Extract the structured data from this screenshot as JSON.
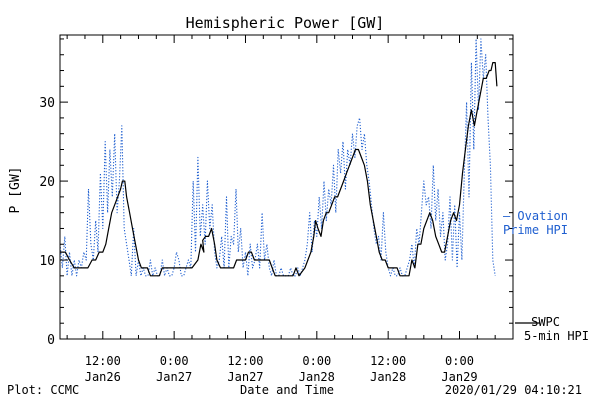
{
  "chart_data": {
    "type": "line",
    "title": "Hemispheric Power [GW]",
    "ylabel": "P [GW]",
    "xlabel": "Date and Time",
    "ylim": [
      0,
      38.5
    ],
    "yticks": [
      0,
      10,
      20,
      30
    ],
    "x_unit": "hours since 2020/01/25 00:00 UT",
    "xlim": [
      4.8,
      81
    ],
    "xticks": [
      {
        "x": 12,
        "line1": "12:00",
        "line2": "Jan26"
      },
      {
        "x": 24,
        "line1": "0:00",
        "line2": "Jan27"
      },
      {
        "x": 36,
        "line1": "12:00",
        "line2": "Jan27"
      },
      {
        "x": 48,
        "line1": "0:00",
        "line2": "Jan28"
      },
      {
        "x": 60,
        "line1": "12:00",
        "line2": "Jan28"
      },
      {
        "x": 72,
        "line1": "0:00",
        "line2": "Jan29"
      }
    ],
    "grid": false,
    "series": [
      {
        "name": "SWPC 5-min HPI",
        "color": "#000000",
        "style": "solid",
        "points": [
          [
            4.8,
            11
          ],
          [
            5.7,
            11
          ],
          [
            6.4,
            10
          ],
          [
            7.2,
            9
          ],
          [
            8,
            9
          ],
          [
            8.8,
            9
          ],
          [
            9.5,
            9
          ],
          [
            10.2,
            10
          ],
          [
            10.8,
            10
          ],
          [
            11.4,
            11
          ],
          [
            12,
            11
          ],
          [
            12.5,
            12
          ],
          [
            13,
            14
          ],
          [
            13.5,
            16
          ],
          [
            14,
            17
          ],
          [
            14.5,
            18
          ],
          [
            15,
            19
          ],
          [
            15.3,
            20
          ],
          [
            15.7,
            20
          ],
          [
            16,
            18
          ],
          [
            16.5,
            16
          ],
          [
            17,
            14
          ],
          [
            17.5,
            12
          ],
          [
            18,
            10
          ],
          [
            18.5,
            9
          ],
          [
            19,
            9
          ],
          [
            19.5,
            9
          ],
          [
            20,
            8
          ],
          [
            20.5,
            8
          ],
          [
            21,
            8
          ],
          [
            21.5,
            8
          ],
          [
            22,
            9
          ],
          [
            22.5,
            9
          ],
          [
            23,
            9
          ],
          [
            24,
            9
          ],
          [
            25,
            9
          ],
          [
            26,
            9
          ],
          [
            27,
            9
          ],
          [
            28,
            10
          ],
          [
            28.5,
            12
          ],
          [
            29,
            11
          ],
          [
            28.8,
            12.5
          ],
          [
            29.3,
            13
          ],
          [
            29.8,
            13
          ],
          [
            30.3,
            14
          ],
          [
            30.8,
            12
          ],
          [
            31.2,
            10
          ],
          [
            31.8,
            9
          ],
          [
            32.5,
            9
          ],
          [
            33.2,
            9
          ],
          [
            34,
            9
          ],
          [
            34.5,
            10
          ],
          [
            35,
            10
          ],
          [
            35.5,
            10
          ],
          [
            36,
            10
          ],
          [
            36.5,
            11
          ],
          [
            37,
            11
          ],
          [
            37.5,
            10
          ],
          [
            38,
            10
          ],
          [
            39,
            10
          ],
          [
            40,
            10
          ],
          [
            40.5,
            9
          ],
          [
            41,
            8
          ],
          [
            42,
            8
          ],
          [
            43,
            8
          ],
          [
            44,
            8
          ],
          [
            44.5,
            9
          ],
          [
            45,
            8
          ],
          [
            46,
            9
          ],
          [
            46.5,
            10
          ],
          [
            47,
            11
          ],
          [
            47.5,
            13
          ],
          [
            47.8,
            15
          ],
          [
            48.2,
            14
          ],
          [
            48.7,
            13
          ],
          [
            49.1,
            15
          ],
          [
            49.6,
            16
          ],
          [
            50,
            16
          ],
          [
            50.5,
            17
          ],
          [
            51,
            18
          ],
          [
            51.5,
            18
          ],
          [
            52,
            19
          ],
          [
            52.5,
            20
          ],
          [
            53,
            21
          ],
          [
            53.5,
            22
          ],
          [
            54,
            23
          ],
          [
            54.5,
            24
          ],
          [
            55,
            24
          ],
          [
            55.5,
            23
          ],
          [
            56,
            22
          ],
          [
            56.5,
            20
          ],
          [
            57,
            17
          ],
          [
            57.5,
            15
          ],
          [
            58,
            13
          ],
          [
            58.5,
            11
          ],
          [
            59,
            10
          ],
          [
            59.5,
            10
          ],
          [
            60,
            9
          ],
          [
            60.5,
            9
          ],
          [
            61,
            9
          ],
          [
            61.5,
            9
          ],
          [
            62,
            8
          ],
          [
            62.5,
            8
          ],
          [
            63,
            8
          ],
          [
            63.5,
            8
          ],
          [
            64,
            10
          ],
          [
            64.5,
            9
          ],
          [
            65,
            12
          ],
          [
            65.5,
            12
          ],
          [
            66,
            14
          ],
          [
            66.5,
            15
          ],
          [
            67,
            16
          ],
          [
            67.5,
            15
          ],
          [
            68,
            13
          ],
          [
            68.5,
            12
          ],
          [
            69,
            11
          ],
          [
            69.5,
            11
          ],
          [
            70,
            13
          ],
          [
            70.5,
            15
          ],
          [
            71,
            16
          ],
          [
            71.5,
            15
          ],
          [
            72,
            17
          ],
          [
            72.5,
            21
          ],
          [
            73,
            24
          ],
          [
            73.5,
            27
          ],
          [
            74,
            29
          ],
          [
            74.5,
            27
          ],
          [
            75,
            29
          ],
          [
            75.5,
            31
          ],
          [
            76,
            33
          ],
          [
            76.5,
            33
          ],
          [
            77,
            34
          ],
          [
            77.3,
            34
          ],
          [
            77.6,
            35
          ],
          [
            78,
            35
          ],
          [
            78.3,
            32
          ]
        ]
      },
      {
        "name": "Ovation Prime HPI",
        "color": "#1f5fd0",
        "style": "dotted",
        "points": [
          [
            4.8,
            12
          ],
          [
            5.2,
            9
          ],
          [
            5.6,
            13
          ],
          [
            6,
            8
          ],
          [
            6.4,
            11
          ],
          [
            6.8,
            8
          ],
          [
            7.2,
            10
          ],
          [
            7.6,
            8
          ],
          [
            8,
            10
          ],
          [
            8.4,
            9
          ],
          [
            8.8,
            11
          ],
          [
            9.2,
            10
          ],
          [
            9.6,
            19
          ],
          [
            10,
            12
          ],
          [
            10.4,
            10
          ],
          [
            10.8,
            15
          ],
          [
            11.2,
            11
          ],
          [
            11.6,
            21
          ],
          [
            12,
            14
          ],
          [
            12.4,
            25
          ],
          [
            12.8,
            16
          ],
          [
            13.2,
            24
          ],
          [
            13.6,
            18
          ],
          [
            14,
            26
          ],
          [
            14.4,
            16
          ],
          [
            14.8,
            20
          ],
          [
            15.2,
            27
          ],
          [
            15.6,
            14
          ],
          [
            16,
            12
          ],
          [
            16.4,
            10
          ],
          [
            16.8,
            8
          ],
          [
            17.2,
            14
          ],
          [
            17.6,
            8
          ],
          [
            18,
            10
          ],
          [
            18.4,
            8
          ],
          [
            18.8,
            9
          ],
          [
            19.2,
            8
          ],
          [
            19.6,
            8
          ],
          [
            20,
            10
          ],
          [
            20.4,
            8
          ],
          [
            20.8,
            9
          ],
          [
            21.2,
            8
          ],
          [
            21.6,
            8
          ],
          [
            22,
            10
          ],
          [
            22.4,
            8
          ],
          [
            22.8,
            9
          ],
          [
            23.2,
            8
          ],
          [
            23.6,
            8
          ],
          [
            24,
            9
          ],
          [
            24.4,
            11
          ],
          [
            24.8,
            10
          ],
          [
            25.2,
            8
          ],
          [
            25.6,
            8
          ],
          [
            26,
            9
          ],
          [
            26.4,
            10
          ],
          [
            26.8,
            9
          ],
          [
            27.2,
            20
          ],
          [
            27.6,
            11
          ],
          [
            28,
            23
          ],
          [
            28.4,
            13
          ],
          [
            28.8,
            17
          ],
          [
            29.2,
            12
          ],
          [
            29.6,
            20
          ],
          [
            30,
            14
          ],
          [
            30.4,
            17
          ],
          [
            30.8,
            11
          ],
          [
            31.2,
            9
          ],
          [
            31.6,
            10
          ],
          [
            32,
            13
          ],
          [
            32.4,
            9
          ],
          [
            32.8,
            18
          ],
          [
            33.2,
            9
          ],
          [
            33.6,
            13
          ],
          [
            34,
            12
          ],
          [
            34.4,
            19
          ],
          [
            34.8,
            11
          ],
          [
            35.2,
            14
          ],
          [
            35.6,
            9
          ],
          [
            36,
            11
          ],
          [
            36.4,
            8
          ],
          [
            36.8,
            12
          ],
          [
            37.2,
            9
          ],
          [
            37.6,
            10
          ],
          [
            38,
            12
          ],
          [
            38.4,
            9
          ],
          [
            38.8,
            16
          ],
          [
            39.2,
            10
          ],
          [
            39.6,
            12
          ],
          [
            40,
            9
          ],
          [
            40.4,
            8
          ],
          [
            40.8,
            10
          ],
          [
            41.2,
            8
          ],
          [
            41.6,
            8
          ],
          [
            42,
            9
          ],
          [
            42.4,
            8
          ],
          [
            42.8,
            8
          ],
          [
            43.2,
            8
          ],
          [
            43.6,
            9
          ],
          [
            44,
            8
          ],
          [
            44.4,
            8
          ],
          [
            44.8,
            9
          ],
          [
            45.2,
            8
          ],
          [
            45.6,
            9
          ],
          [
            46,
            10
          ],
          [
            46.4,
            12
          ],
          [
            46.8,
            16
          ],
          [
            47.2,
            11
          ],
          [
            47.6,
            15
          ],
          [
            48,
            13
          ],
          [
            48.4,
            18
          ],
          [
            48.8,
            14
          ],
          [
            49.2,
            20
          ],
          [
            49.6,
            15
          ],
          [
            50,
            19
          ],
          [
            50.4,
            17
          ],
          [
            50.8,
            22
          ],
          [
            51.2,
            16
          ],
          [
            51.6,
            24
          ],
          [
            52,
            21
          ],
          [
            52.4,
            25
          ],
          [
            52.8,
            19
          ],
          [
            53.2,
            24
          ],
          [
            53.6,
            22
          ],
          [
            54,
            26
          ],
          [
            54.4,
            23
          ],
          [
            54.8,
            27
          ],
          [
            55.2,
            28
          ],
          [
            55.6,
            24
          ],
          [
            56,
            26
          ],
          [
            56.4,
            22
          ],
          [
            56.8,
            20
          ],
          [
            57.2,
            17
          ],
          [
            57.6,
            14
          ],
          [
            58,
            12
          ],
          [
            58.4,
            13
          ],
          [
            58.8,
            10
          ],
          [
            59.2,
            16
          ],
          [
            59.6,
            11
          ],
          [
            60,
            9
          ],
          [
            60.4,
            8
          ],
          [
            60.8,
            9
          ],
          [
            61.2,
            8
          ],
          [
            61.6,
            8
          ],
          [
            62,
            9
          ],
          [
            62.4,
            8
          ],
          [
            62.8,
            8
          ],
          [
            63.2,
            9
          ],
          [
            63.6,
            10
          ],
          [
            64,
            12
          ],
          [
            64.4,
            9
          ],
          [
            64.8,
            14
          ],
          [
            65.2,
            12
          ],
          [
            65.6,
            16
          ],
          [
            66,
            20
          ],
          [
            66.4,
            17
          ],
          [
            66.8,
            18
          ],
          [
            67.2,
            14
          ],
          [
            67.6,
            22
          ],
          [
            68,
            15
          ],
          [
            68.4,
            19
          ],
          [
            68.8,
            13
          ],
          [
            69.2,
            16
          ],
          [
            69.6,
            10
          ],
          [
            70,
            12
          ],
          [
            70.4,
            18
          ],
          [
            70.8,
            10
          ],
          [
            71.2,
            17
          ],
          [
            71.6,
            9
          ],
          [
            72,
            16
          ],
          [
            72.4,
            10
          ],
          [
            72.8,
            21
          ],
          [
            73.2,
            30
          ],
          [
            73.6,
            18
          ],
          [
            74,
            35
          ],
          [
            74.4,
            24
          ],
          [
            74.8,
            38
          ],
          [
            75.2,
            29
          ],
          [
            75.6,
            38
          ],
          [
            76,
            33
          ],
          [
            76.4,
            36
          ],
          [
            76.8,
            28
          ],
          [
            77.2,
            22
          ],
          [
            77.6,
            10
          ],
          [
            78,
            8
          ]
        ]
      }
    ],
    "legend": [
      {
        "line1": "— Ovation",
        "line2": "Prime HPI",
        "color": "#1f5fd0"
      },
      {
        "line1": "SWPC",
        "line2": "5-min HPI",
        "color": "#000000"
      }
    ]
  },
  "footer": {
    "left": "Plot: CCMC",
    "center": "Date and Time",
    "right": "2020/01/29 04:10:21"
  }
}
